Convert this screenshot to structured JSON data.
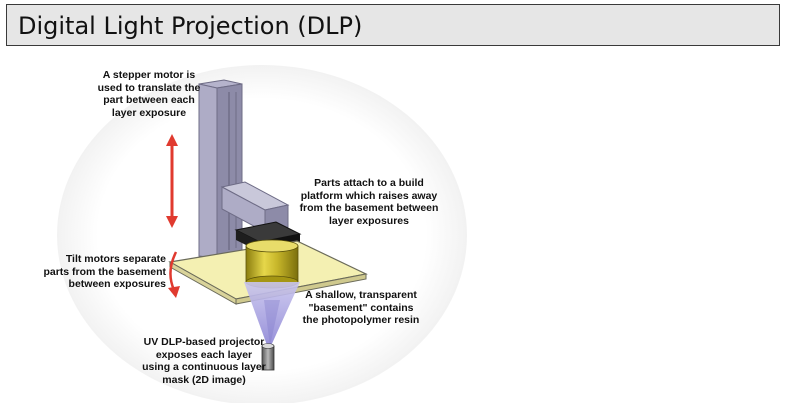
{
  "title": "Digital Light Projection (DLP)",
  "labels": {
    "stepper": [
      "A stepper motor is",
      "used to translate the",
      "part between each",
      "layer exposure"
    ],
    "parts": [
      "Parts attach to a build",
      "platform which raises away",
      "from the basement between",
      "layer exposures"
    ],
    "tilt": [
      "Tilt motors separate",
      "parts from the basement",
      "between exposures"
    ],
    "basement": [
      "A shallow, transparent",
      "\"basement\" contains",
      "the photopolymer resin"
    ],
    "projector": [
      "UV DLP-based projector",
      "exposes each layer",
      "using a continuous layer",
      "mask (2D image)"
    ]
  },
  "colors": {
    "arrow": "#e03a2f",
    "column": "#9a98b4",
    "resin": "#f4f0b2",
    "part": "#d4c531",
    "beam": "#bdb8e6"
  }
}
